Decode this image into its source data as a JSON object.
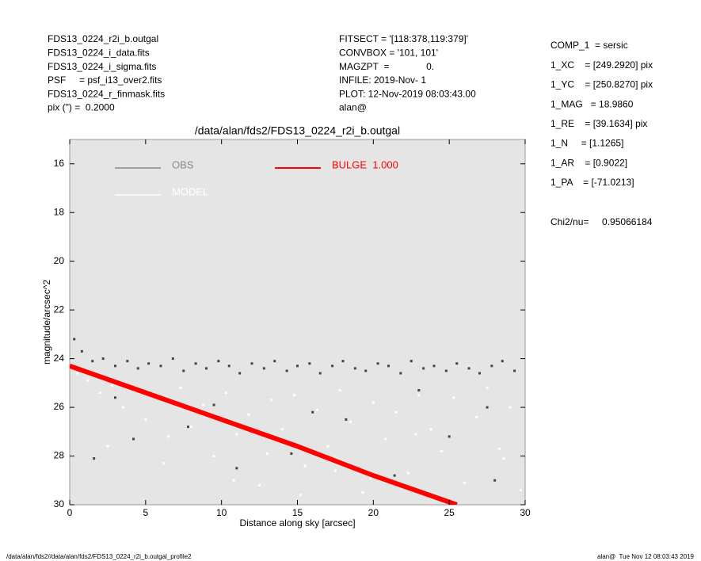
{
  "header": {
    "left": [
      "FDS13_0224_r2i_b.outgal",
      "FDS13_0224_i_data.fits",
      "FDS13_0224_i_sigma.fits",
      "PSF     = psf_i13_over2.fits",
      "FDS13_0224_r_finmask.fits",
      "pix (\") =  0.2000"
    ],
    "middle": [
      "FITSECT = '[118:378,119:379]'",
      "CONVBOX = '101, 101'",
      "MAGZPT  =              0.",
      "INFILE: 2019-Nov- 1",
      "PLOT: 12-Nov-2019 08:03:43.00",
      "alan@"
    ],
    "right": [
      "COMP_1  = sersic",
      "1_XC    = [249.2920] pix",
      "1_YC    = [250.8270] pix",
      "1_MAG   = 18.9860",
      "1_RE    = [39.1634] pix",
      "1_N     = [1.1265]",
      "1_AR    = [0.9022]",
      "1_PA    = [-71.0213]"
    ],
    "chi": "Chi2/nu=     0.95066184"
  },
  "footer": {
    "left": "/data/alan/fds2//data/alan/fds2/FDS13_0224_r2i_b.outgal_profile2",
    "right": "alan@  Tue Nov 12 08:03:43 2019"
  },
  "chart_data": {
    "type": "scatter",
    "title": "/data/alan/fds2/FDS13_0224_r2i_b.outgal",
    "x_label": "Distance along sky [arcsec]",
    "y_label": "magnitude/arcsec^2",
    "xlim": [
      0,
      30
    ],
    "ylim": [
      15,
      30
    ],
    "y_inverted": true,
    "xticks": [
      0,
      5,
      10,
      15,
      20,
      25,
      30
    ],
    "yticks": [
      16,
      18,
      20,
      22,
      24,
      26,
      28,
      30
    ],
    "background": "#e5e5e5",
    "series": [
      {
        "name": "OBS",
        "color": "#444444",
        "legend_color": "#888888",
        "type": "scatter",
        "x": [
          0.3,
          0.8,
          1.5,
          2.2,
          3,
          3.8,
          4.5,
          5.2,
          6,
          6.8,
          7.5,
          8.3,
          9,
          9.8,
          10.5,
          11.2,
          12,
          12.8,
          13.5,
          14.3,
          15,
          15.8,
          16.5,
          17.3,
          18,
          18.8,
          19.5,
          20.3,
          21,
          21.8,
          22.5,
          23.3,
          24,
          24.8,
          25.5,
          26.3,
          27,
          27.8,
          28.5,
          29.3,
          1.6,
          4.2,
          7.8,
          11,
          14.6,
          18.2,
          21.4,
          25,
          28,
          3,
          9.5,
          16,
          23,
          27.5
        ],
        "values": [
          23.2,
          23.7,
          24.1,
          24.0,
          24.3,
          24.1,
          24.4,
          24.2,
          24.3,
          24.0,
          24.5,
          24.2,
          24.4,
          24.1,
          24.3,
          24.6,
          24.2,
          24.4,
          24.1,
          24.5,
          24.3,
          24.2,
          24.6,
          24.3,
          24.1,
          24.4,
          24.5,
          24.2,
          24.3,
          24.6,
          24.1,
          24.4,
          24.3,
          24.5,
          24.2,
          24.4,
          24.6,
          24.3,
          24.1,
          24.5,
          28.1,
          27.3,
          26.8,
          28.5,
          27.9,
          26.5,
          28.8,
          27.2,
          29.0,
          25.6,
          25.9,
          26.2,
          25.3,
          26.0
        ]
      },
      {
        "name": "MODEL",
        "color": "#ffffff",
        "legend_color": "#ffffff",
        "type": "scatter",
        "x": [
          0.5,
          1.2,
          2,
          2.8,
          3.5,
          4.3,
          5,
          5.8,
          6.5,
          7.3,
          8,
          8.8,
          9.5,
          10.3,
          11,
          11.8,
          12.5,
          13.3,
          14,
          14.8,
          15.5,
          16.3,
          17,
          17.8,
          18.5,
          19.3,
          20,
          20.8,
          21.5,
          22.3,
          23,
          23.8,
          24.5,
          25.3,
          26,
          26.8,
          27.5,
          28.3,
          29,
          29.7,
          2.5,
          6.2,
          10.8,
          15.2,
          19.8,
          24.2,
          28.6,
          13,
          17.5,
          22.8
        ],
        "values": [
          24.6,
          24.9,
          25.4,
          25.1,
          26.0,
          25.3,
          26.5,
          25.6,
          27.2,
          25.2,
          26.8,
          25.9,
          28.0,
          25.4,
          27.1,
          26.3,
          29.2,
          25.7,
          26.9,
          25.5,
          28.4,
          26.1,
          27.6,
          25.3,
          26.6,
          29.5,
          25.8,
          27.3,
          26.2,
          28.7,
          25.5,
          26.9,
          27.8,
          25.6,
          29.1,
          26.4,
          25.2,
          27.7,
          26.0,
          29.4,
          27.6,
          28.3,
          29.0,
          29.6,
          28.9,
          29.7,
          28.1,
          27.9,
          28.6,
          27.1
        ]
      },
      {
        "name": "BULGE  1.000",
        "color": "#ff0000",
        "legend_color": "#ff0000",
        "type": "line",
        "x": [
          0,
          5,
          10,
          15,
          20,
          25.5
        ],
        "values": [
          24.3,
          25.4,
          26.5,
          27.6,
          28.8,
          30.0
        ]
      }
    ]
  }
}
